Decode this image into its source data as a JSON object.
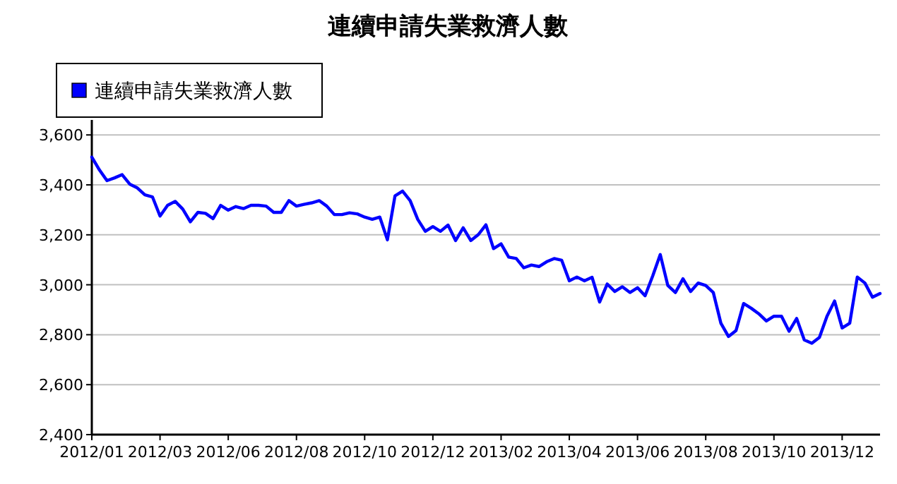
{
  "chart_data": {
    "type": "line",
    "title": "連續申請失業救濟人數",
    "categories": [
      "2012/01",
      null,
      null,
      null,
      null,
      null,
      null,
      null,
      null,
      "2012/03",
      null,
      null,
      null,
      null,
      null,
      null,
      null,
      null,
      "2012/06",
      null,
      null,
      null,
      null,
      null,
      null,
      null,
      null,
      "2012/08",
      null,
      null,
      null,
      null,
      null,
      null,
      null,
      null,
      "2012/10",
      null,
      null,
      null,
      null,
      null,
      null,
      null,
      null,
      "2012/12",
      null,
      null,
      null,
      null,
      null,
      null,
      null,
      null,
      "2013/02",
      null,
      null,
      null,
      null,
      null,
      null,
      null,
      null,
      "2013/04",
      null,
      null,
      null,
      null,
      null,
      null,
      null,
      null,
      "2013/06",
      null,
      null,
      null,
      null,
      null,
      null,
      null,
      null,
      "2013/08",
      null,
      null,
      null,
      null,
      null,
      null,
      null,
      null,
      "2013/10",
      null,
      null,
      null,
      null,
      null,
      null,
      null,
      null,
      "2013/12",
      null,
      null,
      null,
      null,
      null
    ],
    "series": [
      {
        "name": "連續申請失業救濟人數",
        "color": "#0000ff",
        "values": [
          3511,
          3460,
          3417,
          3428,
          3441,
          3403,
          3388,
          3360,
          3352,
          3275,
          3318,
          3334,
          3303,
          3252,
          3290,
          3286,
          3265,
          3318,
          3299,
          3313,
          3305,
          3318,
          3318,
          3315,
          3290,
          3290,
          3337,
          3315,
          3322,
          3328,
          3337,
          3315,
          3281,
          3281,
          3288,
          3284,
          3271,
          3262,
          3271,
          3180,
          3356,
          3375,
          3337,
          3262,
          3214,
          3233,
          3214,
          3239,
          3177,
          3228,
          3177,
          3201,
          3240,
          3145,
          3164,
          3111,
          3105,
          3068,
          3079,
          3073,
          3092,
          3105,
          3098,
          3016,
          3031,
          3016,
          3030,
          2931,
          3003,
          2973,
          2992,
          2969,
          2988,
          2956,
          3035,
          3121,
          2997,
          2969,
          3024,
          2973,
          3007,
          2997,
          2969,
          2846,
          2793,
          2817,
          2925,
          2906,
          2884,
          2855,
          2874,
          2874,
          2814,
          2865,
          2779,
          2766,
          2789,
          2874,
          2935,
          2827,
          2846,
          3031,
          3007,
          2950,
          2965
        ]
      }
    ],
    "ylim": [
      2400,
      3660
    ],
    "yticks": [
      {
        "value": 2400,
        "label": "2,400"
      },
      {
        "value": 2600,
        "label": "2,600"
      },
      {
        "value": 2800,
        "label": "2,800"
      },
      {
        "value": 3000,
        "label": "3,000"
      },
      {
        "value": 3200,
        "label": "3,200"
      },
      {
        "value": 3400,
        "label": "3,400"
      },
      {
        "value": 3600,
        "label": "3,600"
      }
    ],
    "grid": "y",
    "legend": "top left",
    "marker": "none",
    "line_style": "solid"
  }
}
